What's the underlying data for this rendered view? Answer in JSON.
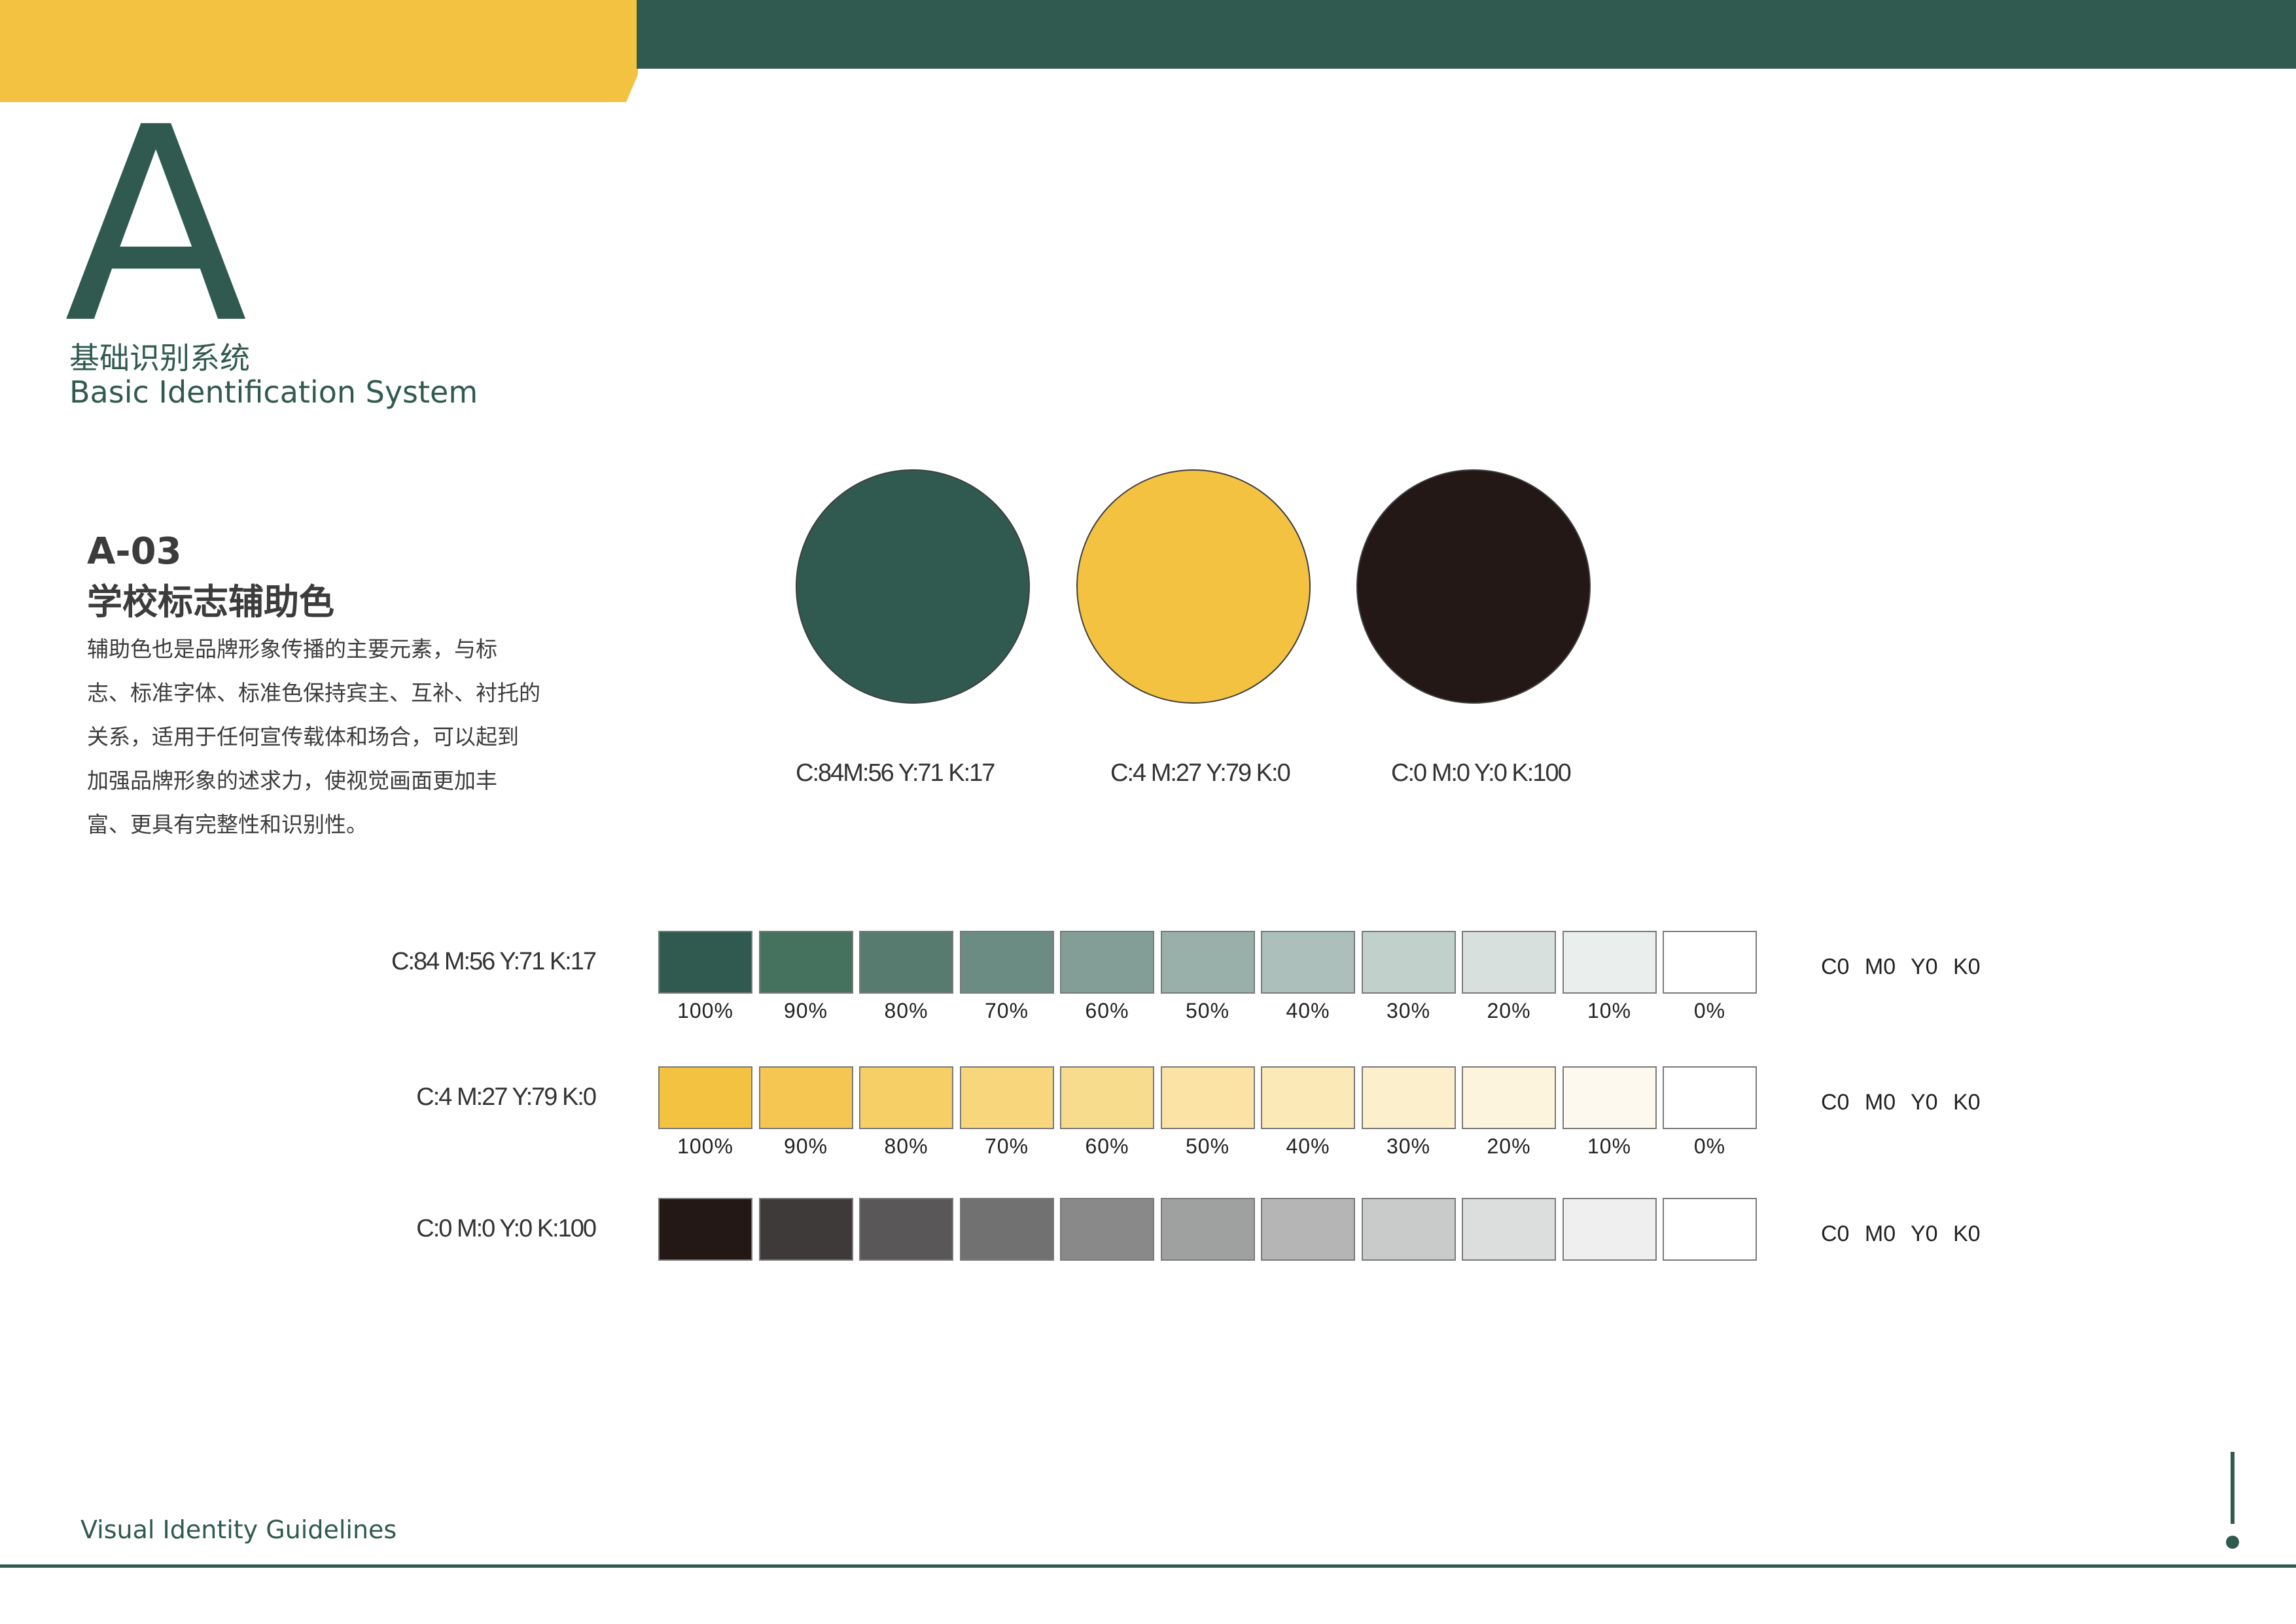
{
  "header": {
    "letter": "A",
    "section_cn": "基础识别系统",
    "section_en": "Basic Identification System"
  },
  "page": {
    "code": "A-03",
    "title": "学校标志辅助色",
    "description_lines": [
      "辅助色也是品牌形象传播的主要元素，与标",
      "志、标准字体、标准色保持宾主、互补、衬托的",
      "关系，适用于任何宣传载体和场合，可以起到",
      "加强品牌形象的述求力，使视觉画面更加丰",
      "富、更具有完整性和识别性。"
    ]
  },
  "swatches": [
    {
      "name": "green",
      "color": "#305a50",
      "label": "C:84M:56 Y:71 K:17"
    },
    {
      "name": "yellow",
      "color": "#f3c241",
      "label": "C:4 M:27 Y:79 K:0"
    },
    {
      "name": "black",
      "color": "#231816",
      "label": "C:0 M:0 Y:0 K:100"
    }
  ],
  "tint_rows": [
    {
      "label": "C:84 M:56 Y:71 K:17",
      "end_label": "C0  M0  Y0  K0",
      "colors": [
        "#305a50",
        "#45715f",
        "#587b70",
        "#6a8c82",
        "#839e96",
        "#98b0a9",
        "#acbfba",
        "#c2d0cc",
        "#d7e0dd",
        "#eaefed",
        "#ffffff"
      ],
      "percents": [
        "100%",
        "90%",
        "80%",
        "70%",
        "60%",
        "50%",
        "40%",
        "30%",
        "20%",
        "10%",
        "0%"
      ]
    },
    {
      "label": "C:4 M:27 Y:79 K:0",
      "end_label": "C0  M0  Y0  K0",
      "colors": [
        "#f3c241",
        "#f5c752",
        "#f6cf66",
        "#f7d67c",
        "#f8dc8e",
        "#fae3a5",
        "#fbe9b8",
        "#fcefcb",
        "#fdf4dd",
        "#fef9ee",
        "#ffffff"
      ],
      "percents": [
        "100%",
        "90%",
        "80%",
        "70%",
        "60%",
        "50%",
        "40%",
        "30%",
        "20%",
        "10%",
        "0%"
      ]
    },
    {
      "label": "C:0 M:0 Y:0 K:100",
      "end_label": "C0  M0  Y0  K0",
      "colors": [
        "#231816",
        "#3e3a39",
        "#595757",
        "#727171",
        "#898989",
        "#9fa0a0",
        "#b5b5b6",
        "#c9caca",
        "#dcdddd",
        "#efefef",
        "#ffffff"
      ],
      "percents": []
    }
  ],
  "footer": {
    "text": "Visual Identity Guidelines"
  },
  "colors": {
    "brand_green": "#305a50",
    "brand_yellow": "#f3c241"
  }
}
